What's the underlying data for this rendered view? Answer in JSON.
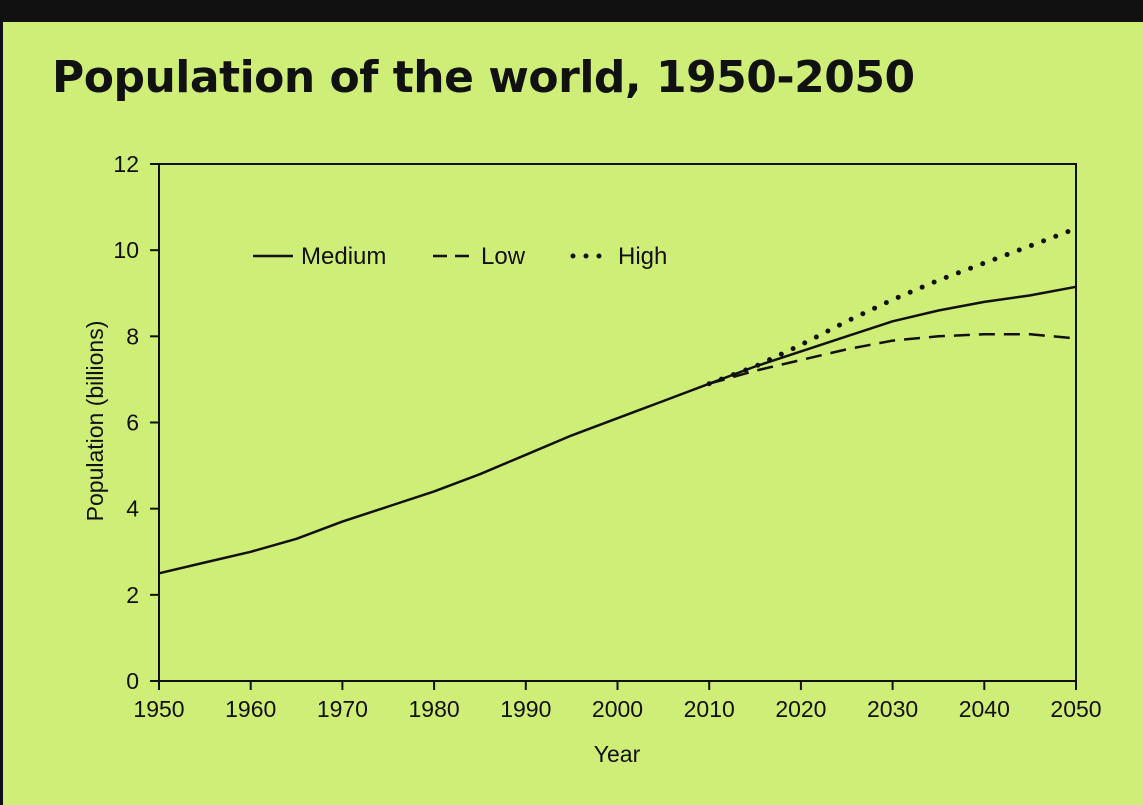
{
  "colors": {
    "background": "#cfee78",
    "frame": "#111111",
    "line": "#111111"
  },
  "chart_data": {
    "type": "line",
    "title": "Population of the world, 1950-2050",
    "xlabel": "Year",
    "ylabel": "Population (billions)",
    "xlim": [
      1950,
      2050
    ],
    "ylim": [
      0,
      12
    ],
    "x_ticks": [
      1950,
      1960,
      1970,
      1980,
      1990,
      2000,
      2010,
      2020,
      2030,
      2040,
      2050
    ],
    "y_ticks": [
      0,
      2,
      4,
      6,
      8,
      10,
      12
    ],
    "grid": false,
    "legend_position": "top-left",
    "series": [
      {
        "name": "Medium",
        "style": "solid",
        "x": [
          1950,
          1955,
          1960,
          1965,
          1970,
          1975,
          1980,
          1985,
          1990,
          1995,
          2000,
          2005,
          2010,
          2015,
          2020,
          2025,
          2030,
          2035,
          2040,
          2045,
          2050
        ],
        "y": [
          2.5,
          2.75,
          3.0,
          3.3,
          3.7,
          4.05,
          4.4,
          4.8,
          5.25,
          5.7,
          6.1,
          6.5,
          6.9,
          7.3,
          7.65,
          8.0,
          8.35,
          8.6,
          8.8,
          8.95,
          9.15
        ]
      },
      {
        "name": "Low",
        "style": "dashed",
        "x": [
          2010,
          2015,
          2020,
          2025,
          2030,
          2035,
          2040,
          2045,
          2050
        ],
        "y": [
          6.9,
          7.2,
          7.45,
          7.7,
          7.9,
          8.0,
          8.05,
          8.05,
          7.95
        ]
      },
      {
        "name": "High",
        "style": "dotted",
        "x": [
          2010,
          2015,
          2020,
          2025,
          2030,
          2035,
          2040,
          2045,
          2050
        ],
        "y": [
          6.9,
          7.3,
          7.8,
          8.35,
          8.85,
          9.3,
          9.7,
          10.1,
          10.5
        ]
      }
    ]
  }
}
